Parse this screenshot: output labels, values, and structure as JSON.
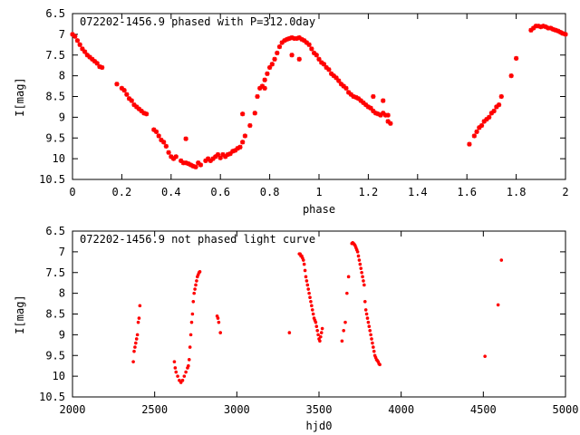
{
  "chart_data": [
    {
      "type": "scatter",
      "title": "072202-1456.9 phased with P=312.0day",
      "xlabel": "phase",
      "ylabel": "I[mag]",
      "xlim": [
        0,
        2
      ],
      "ylim": [
        6.5,
        10.5
      ],
      "y_inverted": true,
      "x_ticks": [
        "0",
        "0.2",
        "0.4",
        "0.6",
        "0.8",
        "1",
        "1.2",
        "1.4",
        "1.6",
        "1.8",
        "2"
      ],
      "x_tick_values": [
        0,
        0.2,
        0.4,
        0.6,
        0.8,
        1,
        1.2,
        1.4,
        1.6,
        1.8,
        2
      ],
      "y_ticks": [
        "6.5",
        "7",
        "7.5",
        "8",
        "8.5",
        "9",
        "9.5",
        "10",
        "10.5"
      ],
      "y_tick_values": [
        6.5,
        7,
        7.5,
        8,
        8.5,
        9,
        9.5,
        10,
        10.5
      ],
      "grid": false,
      "marker_color": "#ff0000",
      "series": [
        {
          "x": [
            0.0,
            0.01,
            0.02,
            0.03,
            0.04,
            0.05,
            0.06,
            0.07,
            0.08,
            0.09,
            0.1,
            0.11,
            0.12,
            0.18,
            0.2,
            0.21,
            0.22,
            0.23,
            0.24,
            0.25,
            0.26,
            0.27,
            0.28,
            0.29,
            0.3,
            0.33,
            0.34,
            0.35,
            0.36,
            0.37,
            0.38,
            0.39,
            0.4,
            0.41,
            0.42,
            0.44,
            0.45,
            0.46,
            0.47,
            0.48,
            0.49,
            0.5,
            0.51,
            0.52,
            0.54,
            0.55,
            0.56,
            0.57,
            0.58,
            0.59,
            0.6,
            0.61,
            0.62,
            0.63,
            0.64,
            0.65,
            0.66,
            0.67,
            0.68,
            0.69,
            0.7,
            0.72,
            0.74,
            0.75,
            0.76,
            0.77,
            0.78,
            0.79,
            0.8,
            0.81,
            0.82,
            0.83,
            0.84,
            0.85,
            0.86,
            0.87,
            0.88,
            0.89,
            0.9,
            0.91,
            0.92,
            0.93,
            0.94,
            0.95,
            0.96,
            0.97,
            0.98,
            0.99,
            1.0,
            1.01,
            1.02,
            1.03,
            1.04,
            1.05,
            1.06,
            1.07,
            1.08,
            1.09,
            1.1,
            1.11,
            1.12,
            1.13,
            1.14,
            1.15,
            1.16,
            1.17,
            1.18,
            1.19,
            1.2,
            1.21,
            1.22,
            1.23,
            1.24,
            1.25,
            1.26,
            1.27,
            1.28,
            1.29,
            1.61,
            1.63,
            1.64,
            1.65,
            1.66,
            1.67,
            1.68,
            1.69,
            1.7,
            1.71,
            1.72,
            1.73,
            1.74,
            1.78,
            1.8,
            1.86,
            1.87,
            1.88,
            1.89,
            1.9,
            1.91,
            1.92,
            1.93,
            1.94,
            1.95,
            1.96,
            1.97,
            1.98,
            1.99,
            2.0
          ],
          "y": [
            7.0,
            7.05,
            7.15,
            7.25,
            7.35,
            7.42,
            7.5,
            7.55,
            7.6,
            7.65,
            7.7,
            7.78,
            7.8,
            8.2,
            8.3,
            8.35,
            8.45,
            8.55,
            8.6,
            8.7,
            8.75,
            8.8,
            8.85,
            8.9,
            8.92,
            9.3,
            9.35,
            9.45,
            9.55,
            9.6,
            9.7,
            9.85,
            9.95,
            10.0,
            9.95,
            10.05,
            10.1,
            10.1,
            10.12,
            10.15,
            10.18,
            10.2,
            10.1,
            10.15,
            10.05,
            10.0,
            10.05,
            10.0,
            9.95,
            9.9,
            9.98,
            9.9,
            9.95,
            9.9,
            9.88,
            9.82,
            9.8,
            9.75,
            9.72,
            9.6,
            9.45,
            9.2,
            8.9,
            8.5,
            8.3,
            8.25,
            8.1,
            7.95,
            7.8,
            7.72,
            7.6,
            7.45,
            7.3,
            7.2,
            7.15,
            7.12,
            7.1,
            7.08,
            7.1,
            7.1,
            7.08,
            7.12,
            7.15,
            7.2,
            7.25,
            7.35,
            7.45,
            7.5,
            7.6,
            7.68,
            7.72,
            7.8,
            7.85,
            7.95,
            8.0,
            8.05,
            8.12,
            8.2,
            8.25,
            8.3,
            8.4,
            8.45,
            8.5,
            8.52,
            8.55,
            8.6,
            8.65,
            8.7,
            8.75,
            8.78,
            8.85,
            8.9,
            8.92,
            8.95,
            8.9,
            8.95,
            9.1,
            9.15,
            9.65,
            9.45,
            9.35,
            9.25,
            9.2,
            9.1,
            9.05,
            9.0,
            8.9,
            8.85,
            8.75,
            8.7,
            8.5,
            8.0,
            7.58,
            6.9,
            6.85,
            6.8,
            6.8,
            6.82,
            6.8,
            6.82,
            6.85,
            6.85,
            6.88,
            6.9,
            6.92,
            6.95,
            6.98,
            7.0
          ]
        }
      ],
      "extra_points": {
        "x": [
          0.46,
          0.69,
          0.78,
          0.89,
          0.92,
          1.22,
          1.26,
          1.28
        ],
        "y": [
          9.52,
          8.92,
          8.3,
          7.5,
          7.6,
          8.5,
          8.6,
          8.95
        ]
      }
    },
    {
      "type": "scatter",
      "title": "072202-1456.9 not phased light curve",
      "xlabel": "hjd0",
      "ylabel": "I[mag]",
      "xlim": [
        2000,
        5000
      ],
      "ylim": [
        6.5,
        10.5
      ],
      "y_inverted": true,
      "x_ticks": [
        "2000",
        "2500",
        "3000",
        "3500",
        "4000",
        "4500",
        "5000"
      ],
      "x_tick_values": [
        2000,
        2500,
        3000,
        3500,
        4000,
        4500,
        5000
      ],
      "y_ticks": [
        "6.5",
        "7",
        "7.5",
        "8",
        "8.5",
        "9",
        "9.5",
        "10",
        "10.5"
      ],
      "y_tick_values": [
        6.5,
        7,
        7.5,
        8,
        8.5,
        9,
        9.5,
        10,
        10.5
      ],
      "grid": false,
      "marker_color": "#ff0000",
      "series": [
        {
          "x": [
            2370,
            2375,
            2380,
            2385,
            2390,
            2395,
            2400,
            2405,
            2410,
            2620,
            2625,
            2630,
            2640,
            2650,
            2660,
            2670,
            2680,
            2690,
            2700,
            2705,
            2710,
            2715,
            2720,
            2725,
            2730,
            2735,
            2740,
            2745,
            2750,
            2755,
            2760,
            2765,
            2770,
            2775,
            2880,
            2885,
            2890,
            2900,
            3320,
            3380,
            3385,
            3390,
            3395,
            3400,
            3405,
            3410,
            3415,
            3420,
            3425,
            3430,
            3435,
            3440,
            3445,
            3450,
            3455,
            3460,
            3465,
            3470,
            3475,
            3480,
            3485,
            3490,
            3495,
            3500,
            3505,
            3510,
            3515,
            3520,
            3640,
            3650,
            3660,
            3670,
            3680,
            3700,
            3705,
            3710,
            3715,
            3720,
            3725,
            3730,
            3735,
            3740,
            3745,
            3750,
            3755,
            3760,
            3765,
            3770,
            3775,
            3780,
            3785,
            3790,
            3795,
            3800,
            3805,
            3810,
            3815,
            3820,
            3825,
            3830,
            3835,
            3840,
            3845,
            3850,
            3855,
            3860,
            3865,
            3870,
            4510,
            4590,
            4610
          ],
          "y": [
            9.65,
            9.4,
            9.3,
            9.2,
            9.1,
            9.0,
            8.7,
            8.6,
            8.3,
            9.65,
            9.8,
            9.9,
            10.0,
            10.1,
            10.15,
            10.1,
            10.0,
            9.9,
            9.8,
            9.75,
            9.6,
            9.3,
            9.0,
            8.7,
            8.5,
            8.2,
            8.0,
            7.9,
            7.8,
            7.7,
            7.6,
            7.55,
            7.5,
            7.48,
            8.55,
            8.6,
            8.7,
            8.95,
            8.95,
            7.05,
            7.05,
            7.1,
            7.1,
            7.15,
            7.2,
            7.3,
            7.45,
            7.6,
            7.7,
            7.8,
            7.9,
            8.0,
            8.1,
            8.2,
            8.3,
            8.4,
            8.5,
            8.6,
            8.65,
            8.7,
            8.8,
            8.9,
            9.0,
            9.1,
            9.15,
            9.05,
            8.95,
            8.85,
            9.15,
            8.9,
            8.7,
            8.0,
            7.6,
            6.8,
            6.78,
            6.8,
            6.82,
            6.85,
            6.9,
            6.95,
            7.0,
            7.1,
            7.2,
            7.3,
            7.4,
            7.5,
            7.6,
            7.7,
            7.8,
            8.2,
            8.4,
            8.5,
            8.6,
            8.7,
            8.8,
            8.9,
            9.0,
            9.1,
            9.2,
            9.3,
            9.4,
            9.5,
            9.55,
            9.6,
            9.62,
            9.65,
            9.7,
            9.72,
            9.52,
            8.28,
            7.2
          ]
        }
      ]
    }
  ]
}
